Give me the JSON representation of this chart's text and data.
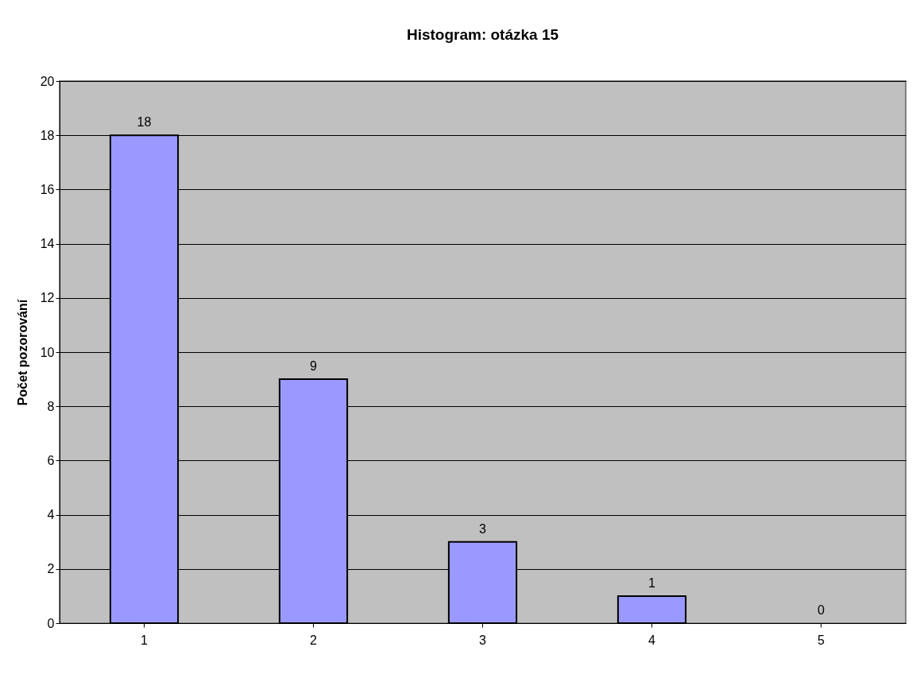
{
  "chart_data": {
    "type": "bar",
    "title": "Histogram: otázka 15",
    "ylabel": "Počet pozorování",
    "categories": [
      "1",
      "2",
      "3",
      "4",
      "5"
    ],
    "values": [
      18,
      9,
      3,
      1,
      0
    ],
    "color": "#9999ff",
    "ylim": [
      0,
      20
    ],
    "yticks": [
      0,
      2,
      4,
      6,
      8,
      10,
      12,
      14,
      16,
      18,
      20
    ],
    "grid": "y",
    "data_labels": true
  }
}
